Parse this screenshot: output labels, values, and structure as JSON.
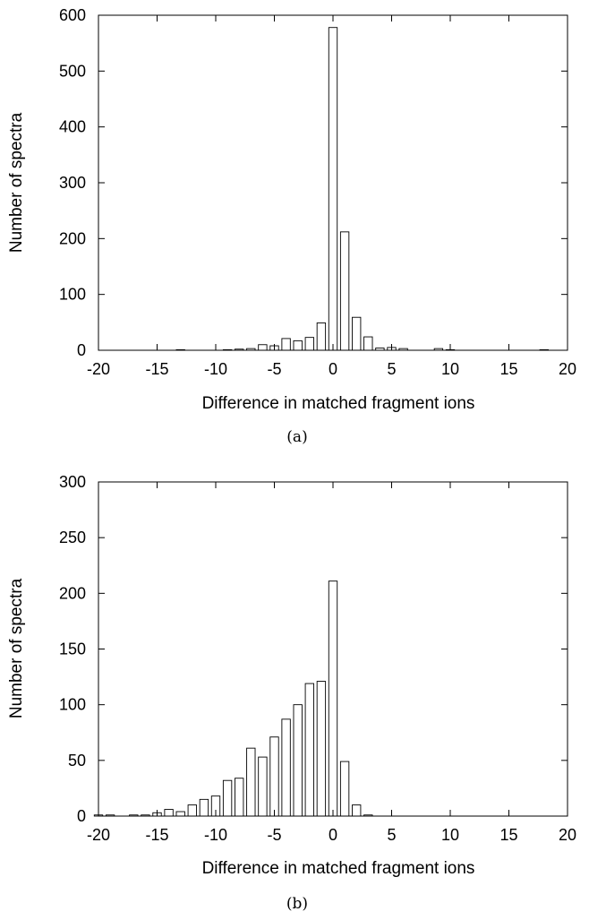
{
  "chart_data": [
    {
      "type": "bar",
      "panel_caption": "(a)",
      "xlabel": "Difference in matched fragment ions",
      "ylabel": "Number of spectra",
      "xlim": [
        -20,
        20
      ],
      "ylim": [
        0,
        600
      ],
      "xticks": [
        -20,
        -15,
        -10,
        -5,
        0,
        5,
        10,
        15,
        20
      ],
      "yticks": [
        0,
        100,
        200,
        300,
        400,
        500,
        600
      ],
      "grid": false,
      "x": [
        -13,
        -9,
        -8,
        -7,
        -6,
        -5,
        -4,
        -3,
        -2,
        -1,
        0,
        1,
        2,
        3,
        4,
        5,
        6,
        9,
        10,
        18
      ],
      "values": [
        1,
        1,
        2,
        3,
        10,
        8,
        21,
        17,
        23,
        49,
        578,
        212,
        59,
        24,
        4,
        5,
        3,
        3,
        1,
        1
      ]
    },
    {
      "type": "bar",
      "panel_caption": "(b)",
      "xlabel": "Difference in matched fragment ions",
      "ylabel": "Number of spectra",
      "xlim": [
        -20,
        20
      ],
      "ylim": [
        0,
        300
      ],
      "xticks": [
        -20,
        -15,
        -10,
        -5,
        0,
        5,
        10,
        15,
        20
      ],
      "yticks": [
        0,
        50,
        100,
        150,
        200,
        250,
        300
      ],
      "grid": false,
      "x": [
        -20,
        -19,
        -17,
        -16,
        -15,
        -14,
        -13,
        -12,
        -11,
        -10,
        -9,
        -8,
        -7,
        -6,
        -5,
        -4,
        -3,
        -2,
        -1,
        0,
        1,
        2,
        3
      ],
      "values": [
        1,
        1,
        1,
        1,
        3,
        6,
        4,
        10,
        15,
        18,
        32,
        34,
        61,
        53,
        71,
        87,
        100,
        119,
        121,
        211,
        49,
        10,
        1
      ]
    }
  ]
}
